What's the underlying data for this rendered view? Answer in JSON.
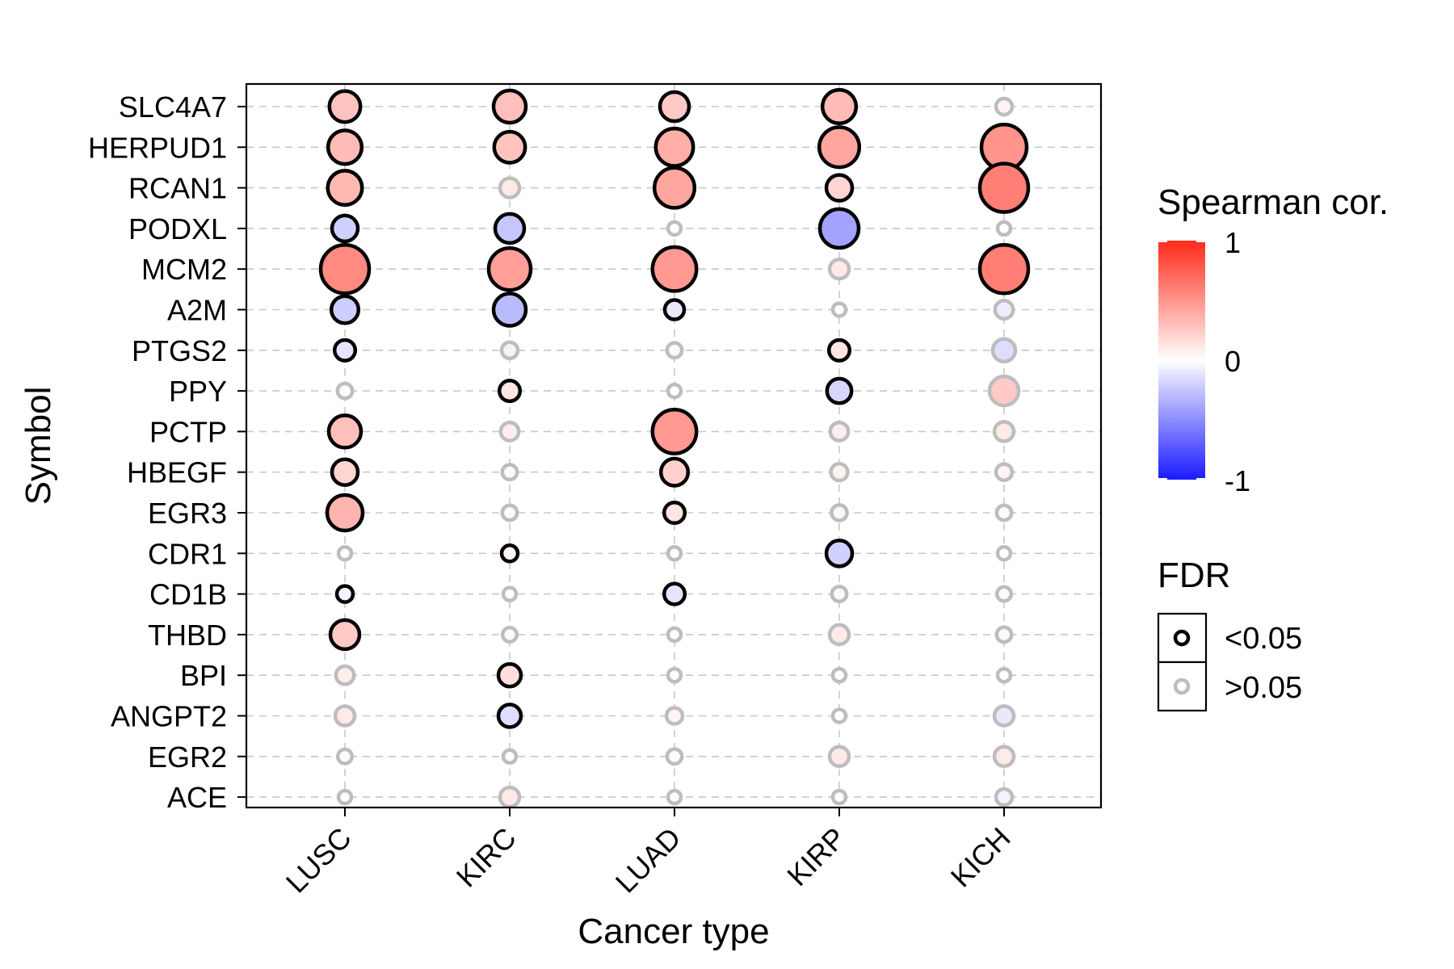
{
  "chart_data": {
    "type": "scatter",
    "title": "",
    "xlabel": "Cancer type",
    "ylabel": "Symbol",
    "x_categories": [
      "LUSC",
      "KIRC",
      "LUAD",
      "KIRP",
      "KICH"
    ],
    "y_categories": [
      "SLC4A7",
      "HERPUD1",
      "RCAN1",
      "PODXL",
      "MCM2",
      "A2M",
      "PTGS2",
      "PPY",
      "PCTP",
      "HBEGF",
      "EGR3",
      "CDR1",
      "CD1B",
      "THBD",
      "BPI",
      "ANGPT2",
      "EGR2",
      "ACE"
    ],
    "grid": true,
    "legend": {
      "placement": "right",
      "color": {
        "title": "Spearman cor.",
        "labels": [
          "1",
          "0",
          "-1"
        ],
        "range": [
          -1,
          1
        ],
        "low_color": "#1a1aff",
        "mid_color": "#ffffff",
        "high_color": "#ff2a1a"
      },
      "fdr": {
        "title": "FDR",
        "items": [
          {
            "label": "<0.05",
            "stroke": "#000000"
          },
          {
            "label": ">0.05",
            "stroke": "#bdbdbd"
          }
        ]
      }
    },
    "points": [
      {
        "x": "LUSC",
        "y": "SLC4A7",
        "cor": 0.28,
        "sig": true
      },
      {
        "x": "KIRC",
        "y": "SLC4A7",
        "cor": 0.3,
        "sig": true
      },
      {
        "x": "LUAD",
        "y": "SLC4A7",
        "cor": 0.25,
        "sig": true
      },
      {
        "x": "KIRP",
        "y": "SLC4A7",
        "cor": 0.32,
        "sig": true
      },
      {
        "x": "KICH",
        "y": "SLC4A7",
        "cor": 0.05,
        "sig": false
      },
      {
        "x": "LUSC",
        "y": "HERPUD1",
        "cor": 0.32,
        "sig": true
      },
      {
        "x": "KIRC",
        "y": "HERPUD1",
        "cor": 0.28,
        "sig": true
      },
      {
        "x": "LUAD",
        "y": "HERPUD1",
        "cor": 0.38,
        "sig": true
      },
      {
        "x": "KIRP",
        "y": "HERPUD1",
        "cor": 0.42,
        "sig": true
      },
      {
        "x": "KICH",
        "y": "HERPUD1",
        "cor": 0.5,
        "sig": true
      },
      {
        "x": "LUSC",
        "y": "RCAN1",
        "cor": 0.33,
        "sig": true
      },
      {
        "x": "KIRC",
        "y": "RCAN1",
        "cor": 0.1,
        "sig": false
      },
      {
        "x": "LUAD",
        "y": "RCAN1",
        "cor": 0.42,
        "sig": true
      },
      {
        "x": "KIRP",
        "y": "RCAN1",
        "cor": 0.2,
        "sig": true
      },
      {
        "x": "KICH",
        "y": "RCAN1",
        "cor": 0.6,
        "sig": true
      },
      {
        "x": "LUSC",
        "y": "PODXL",
        "cor": -0.2,
        "sig": true
      },
      {
        "x": "KIRC",
        "y": "PODXL",
        "cor": -0.25,
        "sig": true
      },
      {
        "x": "LUAD",
        "y": "PODXL",
        "cor": 0.0,
        "sig": false
      },
      {
        "x": "KIRP",
        "y": "PODXL",
        "cor": -0.4,
        "sig": true
      },
      {
        "x": "KICH",
        "y": "PODXL",
        "cor": 0.0,
        "sig": false
      },
      {
        "x": "LUSC",
        "y": "MCM2",
        "cor": 0.55,
        "sig": true
      },
      {
        "x": "KIRC",
        "y": "MCM2",
        "cor": 0.45,
        "sig": true
      },
      {
        "x": "LUAD",
        "y": "MCM2",
        "cor": 0.48,
        "sig": true
      },
      {
        "x": "KIRP",
        "y": "MCM2",
        "cor": 0.1,
        "sig": false
      },
      {
        "x": "KICH",
        "y": "MCM2",
        "cor": 0.6,
        "sig": true
      },
      {
        "x": "LUSC",
        "y": "A2M",
        "cor": -0.22,
        "sig": true
      },
      {
        "x": "KIRC",
        "y": "A2M",
        "cor": -0.3,
        "sig": true
      },
      {
        "x": "LUAD",
        "y": "A2M",
        "cor": -0.1,
        "sig": true
      },
      {
        "x": "KIRP",
        "y": "A2M",
        "cor": 0.0,
        "sig": false
      },
      {
        "x": "KICH",
        "y": "A2M",
        "cor": -0.08,
        "sig": false
      },
      {
        "x": "LUSC",
        "y": "PTGS2",
        "cor": -0.12,
        "sig": true
      },
      {
        "x": "KIRC",
        "y": "PTGS2",
        "cor": -0.05,
        "sig": false
      },
      {
        "x": "LUAD",
        "y": "PTGS2",
        "cor": 0.03,
        "sig": false
      },
      {
        "x": "KIRP",
        "y": "PTGS2",
        "cor": 0.12,
        "sig": true
      },
      {
        "x": "KICH",
        "y": "PTGS2",
        "cor": -0.15,
        "sig": false
      },
      {
        "x": "LUSC",
        "y": "PPY",
        "cor": 0.03,
        "sig": false
      },
      {
        "x": "KIRC",
        "y": "PPY",
        "cor": 0.12,
        "sig": true
      },
      {
        "x": "LUAD",
        "y": "PPY",
        "cor": 0.0,
        "sig": false
      },
      {
        "x": "KIRP",
        "y": "PPY",
        "cor": -0.18,
        "sig": true
      },
      {
        "x": "KICH",
        "y": "PPY",
        "cor": 0.25,
        "sig": false
      },
      {
        "x": "LUSC",
        "y": "PCTP",
        "cor": 0.3,
        "sig": true
      },
      {
        "x": "KIRC",
        "y": "PCTP",
        "cor": 0.08,
        "sig": false
      },
      {
        "x": "LUAD",
        "y": "PCTP",
        "cor": 0.48,
        "sig": true
      },
      {
        "x": "KIRP",
        "y": "PCTP",
        "cor": 0.08,
        "sig": false
      },
      {
        "x": "KICH",
        "y": "PCTP",
        "cor": 0.1,
        "sig": false
      },
      {
        "x": "LUSC",
        "y": "HBEGF",
        "cor": 0.2,
        "sig": true
      },
      {
        "x": "KIRC",
        "y": "HBEGF",
        "cor": 0.03,
        "sig": false
      },
      {
        "x": "LUAD",
        "y": "HBEGF",
        "cor": 0.22,
        "sig": true
      },
      {
        "x": "KIRP",
        "y": "HBEGF",
        "cor": 0.06,
        "sig": false
      },
      {
        "x": "KICH",
        "y": "HBEGF",
        "cor": 0.05,
        "sig": false
      },
      {
        "x": "LUSC",
        "y": "EGR3",
        "cor": 0.35,
        "sig": true
      },
      {
        "x": "KIRC",
        "y": "EGR3",
        "cor": 0.03,
        "sig": false
      },
      {
        "x": "LUAD",
        "y": "EGR3",
        "cor": 0.12,
        "sig": true
      },
      {
        "x": "KIRP",
        "y": "EGR3",
        "cor": 0.04,
        "sig": false
      },
      {
        "x": "KICH",
        "y": "EGR3",
        "cor": 0.03,
        "sig": false
      },
      {
        "x": "LUSC",
        "y": "CDR1",
        "cor": 0.0,
        "sig": false
      },
      {
        "x": "KIRC",
        "y": "CDR1",
        "cor": 0.05,
        "sig": true
      },
      {
        "x": "LUAD",
        "y": "CDR1",
        "cor": 0.0,
        "sig": false
      },
      {
        "x": "KIRP",
        "y": "CDR1",
        "cor": -0.2,
        "sig": true
      },
      {
        "x": "KICH",
        "y": "CDR1",
        "cor": 0.0,
        "sig": false
      },
      {
        "x": "LUSC",
        "y": "CD1B",
        "cor": -0.05,
        "sig": true
      },
      {
        "x": "KIRC",
        "y": "CD1B",
        "cor": 0.0,
        "sig": false
      },
      {
        "x": "LUAD",
        "y": "CD1B",
        "cor": -0.12,
        "sig": true
      },
      {
        "x": "KIRP",
        "y": "CD1B",
        "cor": 0.03,
        "sig": false
      },
      {
        "x": "KICH",
        "y": "CD1B",
        "cor": 0.02,
        "sig": false
      },
      {
        "x": "LUSC",
        "y": "THBD",
        "cor": 0.25,
        "sig": true
      },
      {
        "x": "KIRC",
        "y": "THBD",
        "cor": 0.02,
        "sig": false
      },
      {
        "x": "LUAD",
        "y": "THBD",
        "cor": 0.0,
        "sig": false
      },
      {
        "x": "KIRP",
        "y": "THBD",
        "cor": 0.1,
        "sig": false
      },
      {
        "x": "KICH",
        "y": "THBD",
        "cor": 0.03,
        "sig": false
      },
      {
        "x": "LUSC",
        "y": "BPI",
        "cor": 0.08,
        "sig": false
      },
      {
        "x": "KIRC",
        "y": "BPI",
        "cor": 0.15,
        "sig": true
      },
      {
        "x": "LUAD",
        "y": "BPI",
        "cor": 0.0,
        "sig": false
      },
      {
        "x": "KIRP",
        "y": "BPI",
        "cor": 0.0,
        "sig": false
      },
      {
        "x": "KICH",
        "y": "BPI",
        "cor": 0.0,
        "sig": false
      },
      {
        "x": "LUSC",
        "y": "ANGPT2",
        "cor": 0.1,
        "sig": false
      },
      {
        "x": "KIRC",
        "y": "ANGPT2",
        "cor": -0.15,
        "sig": true
      },
      {
        "x": "LUAD",
        "y": "ANGPT2",
        "cor": 0.05,
        "sig": false
      },
      {
        "x": "KIRP",
        "y": "ANGPT2",
        "cor": 0.0,
        "sig": false
      },
      {
        "x": "KICH",
        "y": "ANGPT2",
        "cor": -0.1,
        "sig": false
      },
      {
        "x": "LUSC",
        "y": "EGR2",
        "cor": 0.02,
        "sig": false
      },
      {
        "x": "KIRC",
        "y": "EGR2",
        "cor": 0.0,
        "sig": false
      },
      {
        "x": "LUAD",
        "y": "EGR2",
        "cor": 0.03,
        "sig": false
      },
      {
        "x": "KIRP",
        "y": "EGR2",
        "cor": 0.1,
        "sig": false
      },
      {
        "x": "KICH",
        "y": "EGR2",
        "cor": 0.1,
        "sig": false
      },
      {
        "x": "LUSC",
        "y": "ACE",
        "cor": 0.0,
        "sig": false
      },
      {
        "x": "KIRC",
        "y": "ACE",
        "cor": 0.1,
        "sig": false
      },
      {
        "x": "LUAD",
        "y": "ACE",
        "cor": 0.0,
        "sig": false
      },
      {
        "x": "KIRP",
        "y": "ACE",
        "cor": 0.0,
        "sig": false
      },
      {
        "x": "KICH",
        "y": "ACE",
        "cor": -0.05,
        "sig": false
      }
    ]
  }
}
